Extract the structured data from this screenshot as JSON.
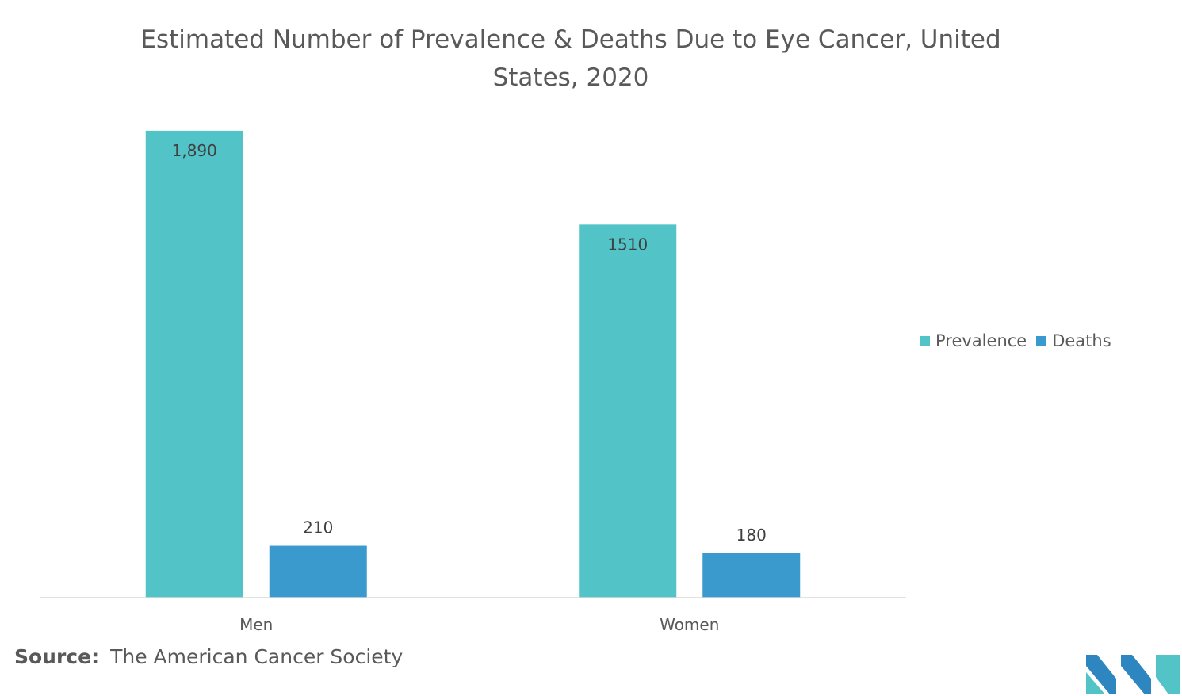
{
  "chart_data": {
    "type": "bar",
    "title": "Estimated Number of Prevalence & Deaths Due to Eye Cancer, United States, 2020",
    "categories": [
      "Men",
      "Women"
    ],
    "series": [
      {
        "name": "Prevalence",
        "values": [
          1890,
          1510
        ],
        "labels": [
          "1,890",
          "1510"
        ],
        "color": "#52C4C8"
      },
      {
        "name": "Deaths",
        "values": [
          210,
          180
        ],
        "labels": [
          "210",
          "180"
        ],
        "color": "#3B9ACD"
      }
    ],
    "xlabel": "",
    "ylabel": "",
    "ylim": [
      0,
      2000
    ],
    "grid": false,
    "legend_position": "right"
  },
  "source": {
    "label": "Source:",
    "text": "The American Cancer Society"
  },
  "colors": {
    "axis": "#D9D9D9",
    "text": "#595959"
  },
  "logo": {
    "icon": "mordor-intelligence-logo-icon",
    "colors": [
      "#2E86C1",
      "#52C4C8"
    ]
  }
}
